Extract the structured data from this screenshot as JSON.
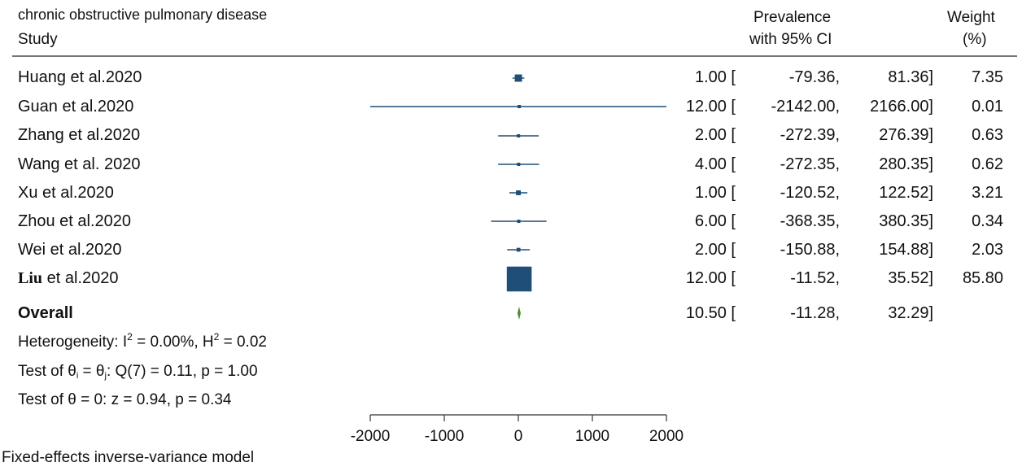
{
  "header": {
    "title": "chronic obstructive pulmonary disease",
    "study_label": "Study",
    "prev_line1": "Prevalence",
    "prev_line2": "with 95% CI",
    "weight_line1": "Weight",
    "weight_line2": "(%)"
  },
  "rows": [
    {
      "name": "Huang et al.2020",
      "est_text": "1.00 [",
      "lo_text": "-79.36,",
      "hi_text": "81.36]",
      "weight_text": "7.35"
    },
    {
      "name": "Guan et al.2020",
      "est_text": "12.00 [",
      "lo_text": "-2142.00,",
      "hi_text": "2166.00]",
      "weight_text": "0.01"
    },
    {
      "name": "Zhang et al.2020",
      "est_text": "2.00 [",
      "lo_text": "-272.39,",
      "hi_text": "276.39]",
      "weight_text": "0.63"
    },
    {
      "name": "Wang et al. 2020",
      "est_text": "4.00 [",
      "lo_text": "-272.35,",
      "hi_text": "280.35]",
      "weight_text": "0.62"
    },
    {
      "name": "Xu et al.2020",
      "est_text": "1.00 [",
      "lo_text": "-120.52,",
      "hi_text": "122.52]",
      "weight_text": "3.21"
    },
    {
      "name": "Zhou et al.2020",
      "est_text": "6.00 [",
      "lo_text": "-368.35,",
      "hi_text": "380.35]",
      "weight_text": "0.34"
    },
    {
      "name": "Wei et al.2020",
      "est_text": "2.00 [",
      "lo_text": "-150.88,",
      "hi_text": "154.88]",
      "weight_text": "2.03"
    },
    {
      "name_bold": "Liu",
      "name_rest": " et al.2020",
      "est_text": "12.00 [",
      "lo_text": "-11.52,",
      "hi_text": "35.52]",
      "weight_text": "85.80"
    }
  ],
  "overall": {
    "label": "Overall",
    "est_text": "10.50 [",
    "lo_text": "-11.28,",
    "hi_text": "32.29]"
  },
  "heterogeneity": {
    "prefix": "Heterogeneity: I",
    "sup1": "2",
    "middle": " = 0.00%, H",
    "sup2": "2",
    "suffix": " = 0.02"
  },
  "test_equal": {
    "prefix": "Test of θ",
    "sub1": "i",
    "middle": " = θ",
    "sub2": "j",
    "suffix": ": Q(7) = 0.11, p = 1.00"
  },
  "test_zero": "Test of θ = 0: z = 0.94, p = 0.34",
  "model_note": "Fixed-effects inverse-variance model",
  "colors": {
    "marker": "#1f4e79",
    "diamond": "#4c8c2b",
    "text": "#111111"
  },
  "chart_data": {
    "type": "forest",
    "xlim": [
      -2000,
      2000
    ],
    "ticks": [
      -2000,
      -1000,
      0,
      1000,
      2000
    ],
    "tick_labels": [
      "-2000",
      "-1000",
      "0",
      "1000",
      "2000"
    ],
    "studies": [
      {
        "name": "Huang et al.2020",
        "est": 1.0,
        "lo": -79.36,
        "hi": 81.36,
        "weight": 7.35
      },
      {
        "name": "Guan et al.2020",
        "est": 12.0,
        "lo": -2142.0,
        "hi": 2166.0,
        "weight": 0.01
      },
      {
        "name": "Zhang et al.2020",
        "est": 2.0,
        "lo": -272.39,
        "hi": 276.39,
        "weight": 0.63
      },
      {
        "name": "Wang et al. 2020",
        "est": 4.0,
        "lo": -272.35,
        "hi": 280.35,
        "weight": 0.62
      },
      {
        "name": "Xu et al.2020",
        "est": 1.0,
        "lo": -120.52,
        "hi": 122.52,
        "weight": 3.21
      },
      {
        "name": "Zhou et al.2020",
        "est": 6.0,
        "lo": -368.35,
        "hi": 380.35,
        "weight": 0.34
      },
      {
        "name": "Wei et al.2020",
        "est": 2.0,
        "lo": -150.88,
        "hi": 154.88,
        "weight": 2.03
      },
      {
        "name": "Liu et al.2020",
        "est": 12.0,
        "lo": -11.52,
        "hi": 35.52,
        "weight": 85.8
      }
    ],
    "overall": {
      "est": 10.5,
      "lo": -11.28,
      "hi": 32.29
    }
  }
}
